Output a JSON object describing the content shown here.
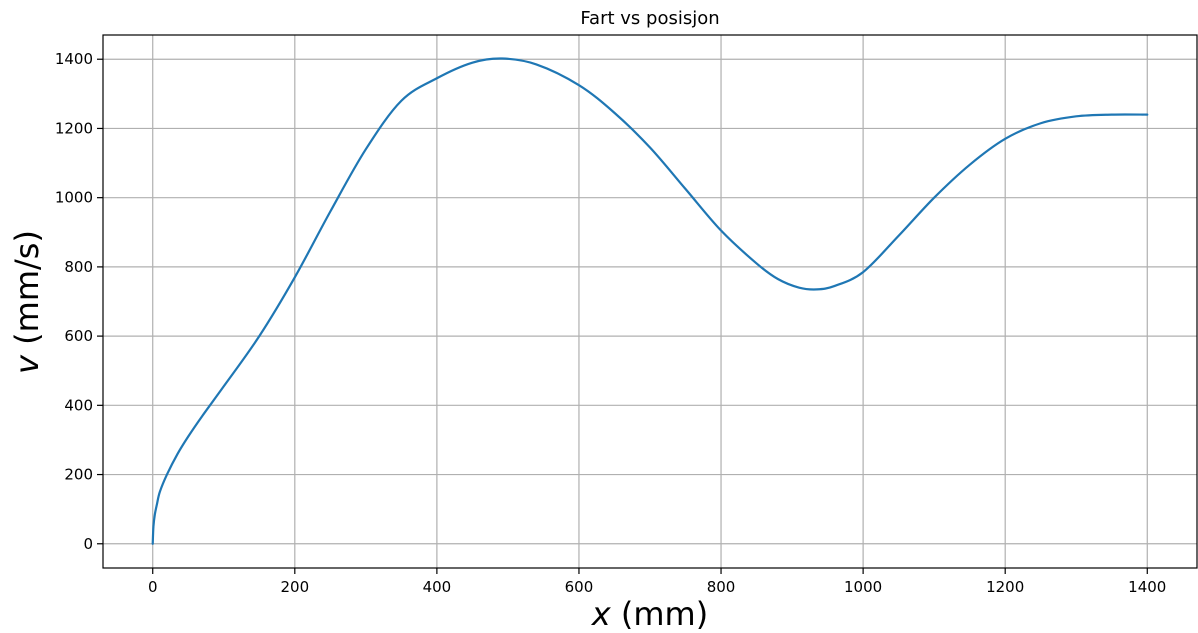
{
  "chart_data": {
    "type": "line",
    "title": "Fart vs posisjon",
    "xlabel": {
      "var": "x",
      "unit": " (mm)"
    },
    "ylabel": {
      "var": "v",
      "unit": " (mm/s)"
    },
    "xlim": [
      -70,
      1470
    ],
    "ylim": [
      -70,
      1470
    ],
    "x_ticks": [
      0,
      200,
      400,
      600,
      800,
      1000,
      1200,
      1400
    ],
    "y_ticks": [
      0,
      200,
      400,
      600,
      800,
      1000,
      1200,
      1400
    ],
    "x_tick_labels": [
      "0",
      "200",
      "400",
      "600",
      "800",
      "1000",
      "1200",
      "1400"
    ],
    "y_tick_labels": [
      "0",
      "200",
      "400",
      "600",
      "800",
      "1000",
      "1200",
      "1400"
    ],
    "grid": true,
    "legend": "none",
    "series": [
      {
        "color": "#1f77b4",
        "x": [
          0,
          1,
          3,
          6,
          10,
          20,
          35,
          50,
          70,
          100,
          150,
          200,
          250,
          300,
          350,
          400,
          450,
          492,
          540,
          600,
          650,
          700,
          750,
          800,
          850,
          880,
          910,
          935,
          960,
          1000,
          1050,
          1100,
          1150,
          1200,
          1250,
          1300,
          1350,
          1400
        ],
        "y": [
          0,
          50,
          85,
          115,
          150,
          200,
          260,
          310,
          370,
          455,
          600,
          770,
          960,
          1140,
          1280,
          1345,
          1390,
          1402,
          1385,
          1325,
          1245,
          1145,
          1025,
          905,
          810,
          765,
          740,
          735,
          745,
          785,
          890,
          1000,
          1095,
          1170,
          1215,
          1235,
          1240,
          1240
        ]
      }
    ]
  }
}
